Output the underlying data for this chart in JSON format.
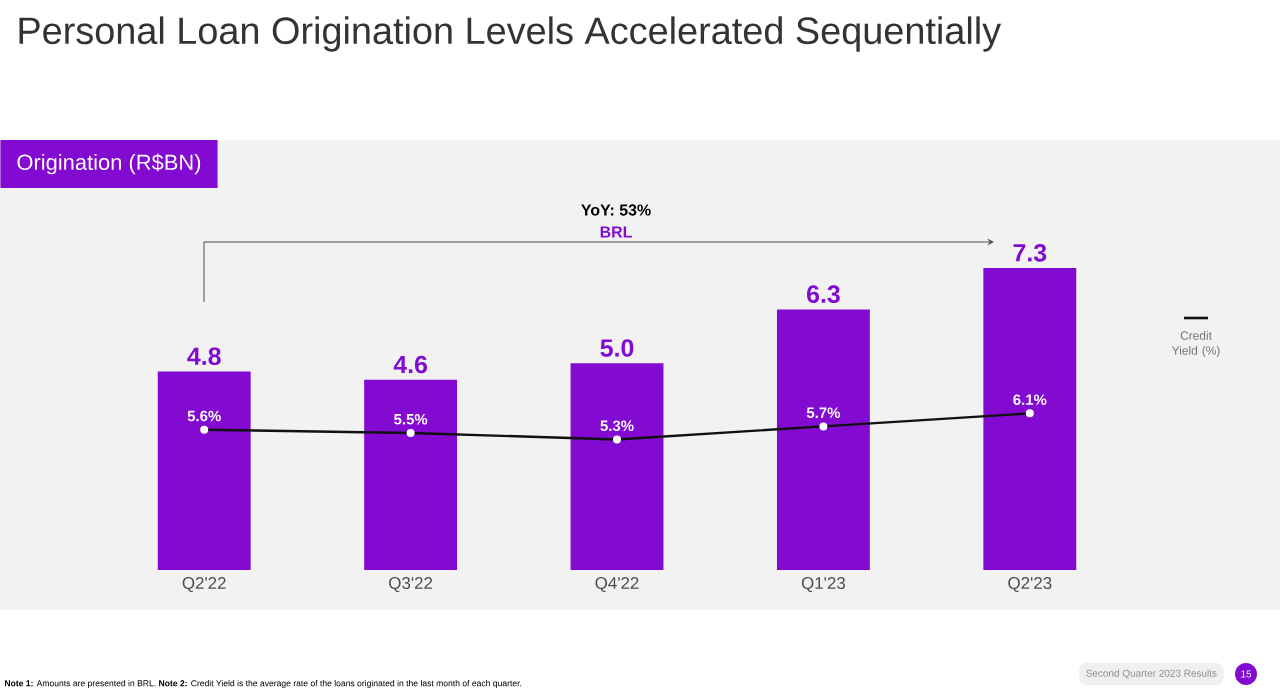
{
  "chart_data": {
    "type": "bar",
    "title": "Personal Loan Origination Levels Accelerated Sequentially",
    "categories": [
      "Q2'22",
      "Q3'22",
      "Q4'22",
      "Q1'23",
      "Q2'23"
    ],
    "series": [
      {
        "color": "#820ad1",
        "values": [
          4.8,
          4.6,
          5.0,
          6.3,
          7.3
        ],
        "value_labels": [
          "4.8",
          "4.6",
          "5.0",
          "6.3",
          "7.3"
        ]
      },
      {
        "type": "line",
        "name": "Credit Yield (%)",
        "axis": "y2",
        "color": "#111111",
        "marker": "circle",
        "values": [
          5.6,
          5.5,
          5.3,
          5.7,
          6.1
        ],
        "value_labels": [
          "5.6%",
          "5.5%",
          "5.3%",
          "5.7%",
          "6.1%"
        ]
      }
    ],
    "tick_labels": "x",
    "legend": "right",
    "annotations": [
      "YoY: 53%",
      "BRL",
      "**Note 1:** Amounts are presented in BRL. **Note 2:** Credit Yield is the average rate of the loans originated in the last month of each quarter.",
      "Second Quarter 2023 Results",
      "15",
      "Origination (R$BN)"
    ]
  }
}
